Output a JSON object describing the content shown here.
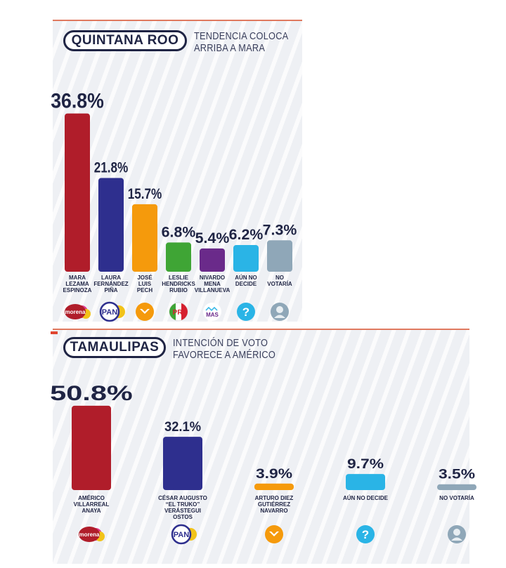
{
  "colors": {
    "morena": "#b01d2a",
    "pan": "#2e2f8e",
    "mc": "#f59a0c",
    "pri": "#3fa535",
    "mas": "#6a2a8a",
    "undecided": "#2ab4e6",
    "novote": "#8fa7b8",
    "text": "#1f2444"
  },
  "chart_data": [
    {
      "type": "bar",
      "state": "QUINTANA ROO",
      "subtitle_lines": [
        "TENDENCIA COLOCA",
        "ARRIBA A MARA"
      ],
      "ylim": [
        0,
        40
      ],
      "categories": [
        {
          "lines": [
            "MARA",
            "LEZAMA",
            "ESPINOZA"
          ],
          "value": 36.8,
          "label": "36.8%",
          "color": "#b01d2a",
          "logo": "morena-logo"
        },
        {
          "lines": [
            "LAURA",
            "FERNÁNDEZ",
            "PIÑA"
          ],
          "value": 21.8,
          "label": "21.8%",
          "color": "#2e2f8e",
          "logo": "pan-logo"
        },
        {
          "lines": [
            "JOSÉ",
            "LUIS",
            "PECH"
          ],
          "value": 15.7,
          "label": "15.7%",
          "color": "#f59a0c",
          "logo": "movimiento-ciudadano-logo"
        },
        {
          "lines": [
            "LESLIE",
            "HENDRICKS",
            "RUBIO"
          ],
          "value": 6.8,
          "label": "6.8%",
          "color": "#3fa535",
          "logo": "pri-logo"
        },
        {
          "lines": [
            "NIVARDO",
            "MENA",
            "VILLANUEVA"
          ],
          "value": 5.4,
          "label": "5.4%",
          "color": "#6a2a8a",
          "logo": "mas-logo"
        },
        {
          "lines": [
            "AÚN NO",
            "DECIDE"
          ],
          "value": 6.2,
          "label": "6.2%",
          "color": "#2ab4e6",
          "logo": "question-icon"
        },
        {
          "lines": [
            "NO",
            "VOTARÍA"
          ],
          "value": 7.3,
          "label": "7.3%",
          "color": "#8fa7b8",
          "logo": "person-icon"
        }
      ],
      "logo_text": {
        "morena": "morena",
        "pan": "PAN",
        "pri": "PRI",
        "mas": "MAS",
        "question": "?"
      }
    },
    {
      "type": "bar",
      "state": "TAMAULIPAS",
      "subtitle_lines": [
        "INTENCIÓN DE VOTO",
        "FAVORECE A AMÉRICO"
      ],
      "ylim": [
        0,
        55
      ],
      "categories": [
        {
          "lines": [
            "AMÉRICO",
            "VILLARREAL",
            "ANAYA"
          ],
          "value": 50.8,
          "label": "50.8%",
          "color": "#b01d2a",
          "logo": "morena-logo"
        },
        {
          "lines": [
            "CÉSAR AUGUSTO",
            "“EL TRUKO”",
            "VERÁSTEGUI",
            "OSTOS"
          ],
          "value": 32.1,
          "label": "32.1%",
          "color": "#2e2f8e",
          "logo": "pan-logo"
        },
        {
          "lines": [
            "ARTURO DIEZ",
            "GUTIÉRREZ",
            "NAVARRO"
          ],
          "value": 3.9,
          "label": "3.9%",
          "color": "#f59a0c",
          "logo": "movimiento-ciudadano-logo"
        },
        {
          "lines": [
            "AÚN NO DECIDE"
          ],
          "value": 9.7,
          "label": "9.7%",
          "color": "#2ab4e6",
          "logo": "question-icon"
        },
        {
          "lines": [
            "NO VOTARÍA"
          ],
          "value": 3.5,
          "label": "3.5%",
          "color": "#8fa7b8",
          "logo": "person-icon"
        }
      ],
      "logo_text": {
        "morena": "morena",
        "pan": "PAN",
        "question": "?"
      }
    }
  ]
}
